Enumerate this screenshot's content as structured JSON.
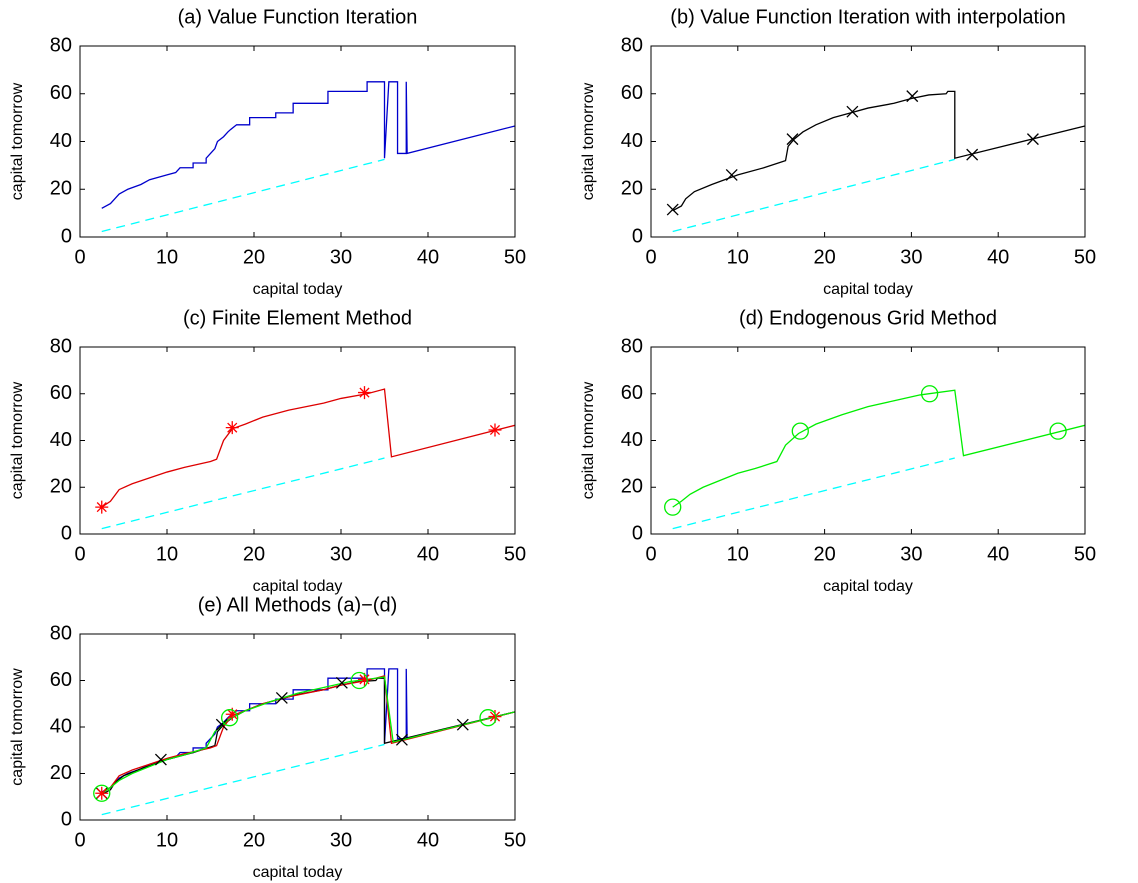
{
  "chart_data": [
    {
      "type": "line",
      "title": "(a) Value Function Iteration",
      "xlabel": "capital today",
      "ylabel": "capital tomorrow",
      "xlim": [
        0,
        50
      ],
      "ylim": [
        0,
        80
      ],
      "xticks": [
        0,
        10,
        20,
        30,
        40,
        50
      ],
      "yticks": [
        0,
        20,
        40,
        60,
        80
      ],
      "series": [
        {
          "color": "#00ffff",
          "line": "dashed",
          "x": [
            2.5,
            35
          ],
          "values": [
            2.3,
            32.5
          ]
        },
        {
          "color": "#0000cc",
          "line": "solid",
          "x": [
            2.5,
            3.5,
            4,
            4.5,
            5.5,
            7,
            8,
            10,
            11,
            11.5,
            13,
            13,
            14.5,
            14.5,
            15,
            15.5,
            15.8,
            16.5,
            17,
            17.3,
            18,
            19.5,
            19.5,
            22.5,
            22.5,
            24.5,
            24.5,
            28.5,
            28.5,
            33,
            33,
            35,
            35,
            35.5,
            36.5,
            36.5,
            37.5,
            37.5,
            37.6,
            50
          ],
          "values": [
            12,
            14,
            16,
            18,
            20,
            22,
            24,
            26,
            27,
            29,
            29,
            31,
            31,
            33,
            35,
            37,
            40,
            42,
            44,
            45,
            47,
            47,
            50,
            50,
            52,
            52,
            56,
            56,
            61,
            61,
            65,
            65,
            33,
            65,
            65,
            35,
            35,
            65,
            35,
            46.5
          ]
        }
      ]
    },
    {
      "type": "line",
      "title": "(b) Value Function Iteration with interpolation",
      "xlabel": "capital today",
      "ylabel": "capital tomorrow",
      "xlim": [
        0,
        50
      ],
      "ylim": [
        0,
        80
      ],
      "xticks": [
        0,
        10,
        20,
        30,
        40,
        50
      ],
      "yticks": [
        0,
        20,
        40,
        60,
        80
      ],
      "series": [
        {
          "color": "#00ffff",
          "line": "dashed",
          "x": [
            2.5,
            35
          ],
          "values": [
            2.3,
            32.5
          ]
        },
        {
          "color": "#000000",
          "line": "solid",
          "x": [
            2.5,
            3.5,
            4,
            5,
            7,
            10,
            13,
            15.5,
            15.8,
            16.5,
            17.5,
            19,
            21,
            23,
            25,
            28,
            30,
            32,
            34,
            34.2,
            35,
            35,
            50
          ],
          "values": [
            11,
            13,
            16,
            19,
            22,
            26,
            29,
            32,
            38,
            41,
            44,
            47,
            50,
            52,
            54,
            56,
            58,
            59.5,
            60,
            61,
            61,
            33,
            46.5
          ]
        },
        {
          "color": "#000000",
          "line": "none",
          "marker": "x",
          "x": [
            2.5,
            9.3,
            16.3,
            23.2,
            30.1,
            37,
            44
          ],
          "values": [
            11.5,
            26,
            41,
            52.5,
            59,
            34.5,
            41
          ]
        }
      ]
    },
    {
      "type": "line",
      "title": "(c) Finite Element Method",
      "xlabel": "capital today",
      "ylabel": "capital tomorrow",
      "xlim": [
        0,
        50
      ],
      "ylim": [
        0,
        80
      ],
      "xticks": [
        0,
        10,
        20,
        30,
        40,
        50
      ],
      "yticks": [
        0,
        20,
        40,
        60,
        80
      ],
      "series": [
        {
          "color": "#00ffff",
          "line": "dashed",
          "x": [
            2.5,
            35
          ],
          "values": [
            2.3,
            32.5
          ]
        },
        {
          "color": "#dd0000",
          "line": "solid",
          "x": [
            2.5,
            3.5,
            4.5,
            6,
            8,
            10,
            12,
            15,
            15.7,
            16.5,
            17.5,
            19,
            21,
            24,
            28,
            30,
            33,
            35,
            35.8,
            50
          ],
          "values": [
            11.5,
            14,
            19,
            21.5,
            24,
            26.5,
            28.5,
            31,
            32,
            40,
            45,
            47,
            50,
            53,
            56,
            58,
            60,
            62,
            33,
            46.5
          ]
        },
        {
          "color": "#ff0000",
          "line": "none",
          "marker": "*",
          "x": [
            2.5,
            17.5,
            32.7,
            47.7
          ],
          "values": [
            11.5,
            45.5,
            60.5,
            44.5
          ]
        }
      ]
    },
    {
      "type": "line",
      "title": "(d) Endogenous Grid Method",
      "xlabel": "capital today",
      "ylabel": "capital tomorrow",
      "xlim": [
        0,
        50
      ],
      "ylim": [
        0,
        80
      ],
      "xticks": [
        0,
        10,
        20,
        30,
        40,
        50
      ],
      "yticks": [
        0,
        20,
        40,
        60,
        80
      ],
      "series": [
        {
          "color": "#00ffff",
          "line": "dashed",
          "x": [
            2.5,
            35
          ],
          "values": [
            2.3,
            32.5
          ]
        },
        {
          "color": "#00ee00",
          "line": "solid",
          "x": [
            2.5,
            3.5,
            4.5,
            6,
            8,
            10,
            12,
            14.5,
            15.5,
            17,
            19,
            22,
            25,
            28,
            31,
            35,
            36,
            50
          ],
          "values": [
            11.5,
            14,
            17,
            20,
            23,
            26,
            28,
            31,
            38,
            43,
            47,
            51,
            54.5,
            57,
            59.5,
            61.5,
            33.5,
            46.5
          ]
        },
        {
          "color": "#00ee00",
          "line": "none",
          "marker": "o",
          "x": [
            2.5,
            17.2,
            32.1,
            46.9
          ],
          "values": [
            11.5,
            44,
            60,
            44
          ]
        }
      ]
    },
    {
      "type": "line",
      "title": "(e) All Methods (a)−(d)",
      "xlabel": "capital today",
      "ylabel": "capital tomorrow",
      "xlim": [
        0,
        50
      ],
      "ylim": [
        0,
        80
      ],
      "xticks": [
        0,
        10,
        20,
        30,
        40,
        50
      ],
      "yticks": [
        0,
        20,
        40,
        60,
        80
      ],
      "series": [
        {
          "color": "#00ffff",
          "line": "dashed",
          "x": [
            2.5,
            35
          ],
          "values": [
            2.3,
            32.5
          ]
        },
        {
          "color": "#0000cc",
          "line": "solid",
          "x": [
            2.5,
            3.5,
            4,
            4.5,
            5.5,
            7,
            8,
            10,
            11,
            11.5,
            13,
            13,
            14.5,
            14.5,
            15,
            15.5,
            15.8,
            16.5,
            17,
            17.3,
            18,
            19.5,
            19.5,
            22.5,
            22.5,
            24.5,
            24.5,
            28.5,
            28.5,
            33,
            33,
            35,
            35,
            35.5,
            36.5,
            36.5,
            37.5,
            37.5,
            37.6,
            50
          ],
          "values": [
            12,
            14,
            16,
            18,
            20,
            22,
            24,
            26,
            27,
            29,
            29,
            31,
            31,
            33,
            35,
            37,
            40,
            42,
            44,
            45,
            47,
            47,
            50,
            50,
            52,
            52,
            56,
            56,
            61,
            61,
            65,
            65,
            33,
            65,
            65,
            35,
            35,
            65,
            35,
            46.5
          ]
        },
        {
          "color": "#000000",
          "line": "solid",
          "x": [
            2.5,
            3.5,
            4,
            5,
            7,
            10,
            13,
            15.5,
            15.8,
            16.5,
            17.5,
            19,
            21,
            23,
            25,
            28,
            30,
            32,
            34,
            34.2,
            35,
            35,
            50
          ],
          "values": [
            11,
            13,
            16,
            19,
            22,
            26,
            29,
            32,
            38,
            41,
            44,
            47,
            50,
            52,
            54,
            56,
            58,
            59.5,
            60,
            61,
            61,
            33,
            46.5
          ]
        },
        {
          "color": "#dd0000",
          "line": "solid",
          "x": [
            2.5,
            3.5,
            4.5,
            6,
            8,
            10,
            12,
            15,
            15.7,
            16.5,
            17.5,
            19,
            21,
            24,
            28,
            30,
            33,
            35,
            35.8,
            50
          ],
          "values": [
            11.5,
            14,
            19,
            21.5,
            24,
            26.5,
            28.5,
            31,
            32,
            40,
            45,
            47,
            50,
            53,
            56,
            58,
            60,
            62,
            33,
            46.5
          ]
        },
        {
          "color": "#00ee00",
          "line": "solid",
          "x": [
            2.5,
            3.5,
            4.5,
            6,
            8,
            10,
            12,
            14.5,
            15.5,
            17,
            19,
            22,
            25,
            28,
            31,
            35,
            36,
            50
          ],
          "values": [
            11.5,
            14,
            17,
            20,
            23,
            26,
            28,
            31,
            38,
            43,
            47,
            51,
            54.5,
            57,
            59.5,
            61.5,
            33.5,
            46.5
          ]
        },
        {
          "color": "#000000",
          "line": "none",
          "marker": "x",
          "x": [
            2.5,
            9.3,
            16.3,
            23.2,
            30.1,
            37,
            44
          ],
          "values": [
            11.5,
            26,
            41,
            52.5,
            59,
            34.5,
            41
          ]
        },
        {
          "color": "#ff0000",
          "line": "none",
          "marker": "*",
          "x": [
            2.5,
            17.5,
            32.7,
            47.7
          ],
          "values": [
            11.5,
            45.5,
            60.5,
            44.5
          ]
        },
        {
          "color": "#00ee00",
          "line": "none",
          "marker": "o",
          "x": [
            2.5,
            17.2,
            32.1,
            46.9
          ],
          "values": [
            11.5,
            44,
            60,
            44
          ]
        }
      ]
    }
  ]
}
